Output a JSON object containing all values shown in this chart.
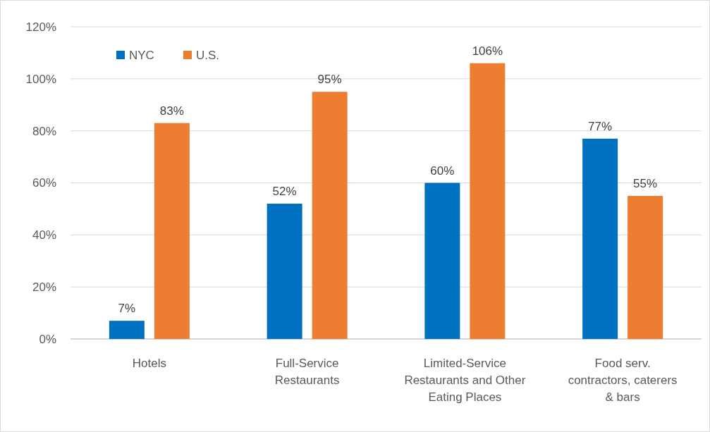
{
  "chart_data": {
    "type": "bar",
    "categories": [
      "Hotels",
      "Full-Service Restaurants",
      "Limited-Service Restaurants and Other Eating Places",
      "Food serv. contractors, caterers & bars"
    ],
    "series": [
      {
        "name": "NYC",
        "color": "#0070c0",
        "values": [
          7,
          52,
          60,
          77
        ],
        "value_labels": [
          "7%",
          "52%",
          "60%",
          "77%"
        ]
      },
      {
        "name": "U.S.",
        "color": "#ed7d31",
        "values": [
          83,
          95,
          106,
          55
        ],
        "value_labels": [
          "83%",
          "95%",
          "106%",
          "55%"
        ]
      }
    ],
    "ylim": [
      0,
      120
    ],
    "yticks": [
      {
        "value": 0,
        "label": "0%"
      },
      {
        "value": 20,
        "label": "20%"
      },
      {
        "value": 40,
        "label": "40%"
      },
      {
        "value": 60,
        "label": "60%"
      },
      {
        "value": 80,
        "label": "80%"
      },
      {
        "value": 100,
        "label": "100%"
      },
      {
        "value": 120,
        "label": "120%"
      }
    ],
    "grid": "y",
    "legend": "top left"
  }
}
